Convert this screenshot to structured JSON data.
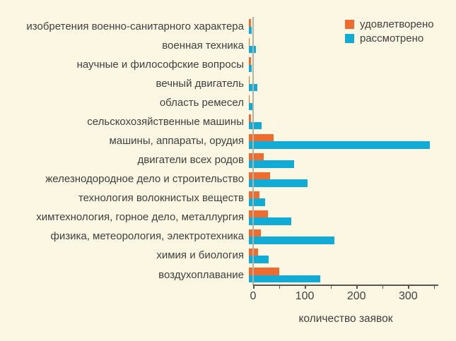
{
  "chart_data": {
    "type": "bar",
    "orientation": "horizontal",
    "title": "",
    "xlabel": "количество заявок",
    "xlim": [
      0,
      355
    ],
    "x_major_ticks": [
      0,
      100,
      200,
      300
    ],
    "x_minor_ticks": [
      50,
      150,
      250,
      350
    ],
    "grid": false,
    "legend_position": "top-right",
    "background_color": "#fbf7e2",
    "text_color": "#3f3f3f",
    "categories": [
      "изобретения военно-санитарного характера",
      "военная техника",
      "научные и философские вопросы",
      "вечный двигатель",
      "область ремесел",
      "сельскохозяйственные машины",
      "машины, аппараты, орудия",
      "двигатели всех родов",
      "железнодородное дело и строительство",
      "технология волокнистых веществ",
      "химтехнология, горное дело, металлургия",
      "физика, метеорология, электротехника",
      "химия и биология",
      "воздухоплавание"
    ],
    "series": [
      {
        "name": "удовлетворено",
        "color": "#ee6c30",
        "values": [
          4,
          2,
          4,
          1,
          1,
          4,
          48,
          29,
          41,
          21,
          37,
          23,
          18,
          59
        ]
      },
      {
        "name": "рассмотрено",
        "color": "#10acd6",
        "values": [
          5,
          13,
          6,
          17,
          8,
          25,
          350,
          88,
          113,
          32,
          82,
          165,
          38,
          138
        ]
      }
    ]
  }
}
